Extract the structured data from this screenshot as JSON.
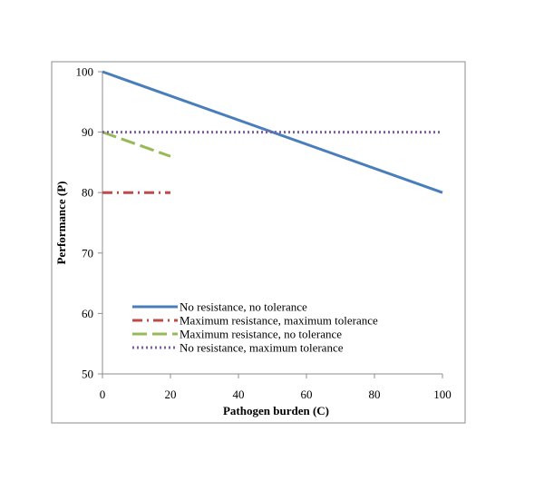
{
  "chart_data": {
    "type": "line",
    "title": "",
    "xlabel": "Pathogen burden (C)",
    "ylabel": "Performance (P)",
    "xlim": [
      0,
      100
    ],
    "ylim": [
      50,
      100
    ],
    "xticks": [
      0,
      20,
      40,
      60,
      80,
      100
    ],
    "yticks": [
      50,
      60,
      70,
      80,
      90,
      100
    ],
    "grid": false,
    "legend_position": "bottom-left",
    "series": [
      {
        "name": "No resistance, no tolerance",
        "color": "#4a7ebb",
        "dash": "solid",
        "x": [
          0,
          100
        ],
        "y": [
          100,
          80
        ]
      },
      {
        "name": "Maximum resistance, maximum tolerance",
        "color": "#be4b48",
        "dash": "dash-dot",
        "x": [
          0,
          20
        ],
        "y": [
          80,
          80
        ]
      },
      {
        "name": "Maximum resistance, no tolerance",
        "color": "#98b954",
        "dash": "long-dash",
        "x": [
          0,
          20
        ],
        "y": [
          90,
          86
        ]
      },
      {
        "name": "No resistance, maximum tolerance",
        "color": "#7d60a0",
        "dash": "dotted",
        "x": [
          0,
          100
        ],
        "y": [
          90,
          90
        ]
      }
    ]
  }
}
